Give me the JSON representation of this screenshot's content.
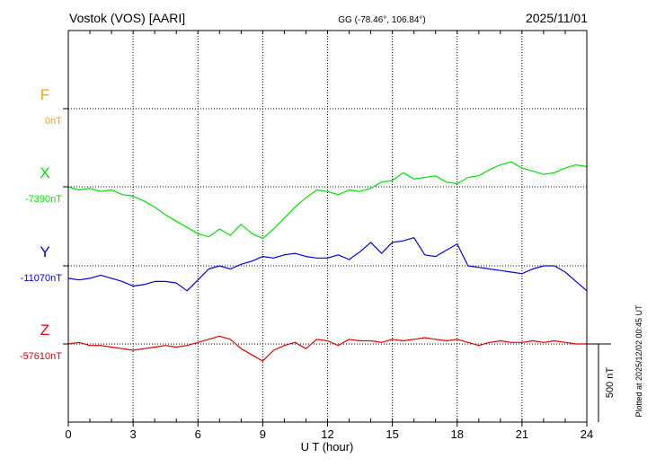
{
  "header": {
    "station": "Vostok (VOS)  [AARI]",
    "coords": "GG (-78.46°, 106.84°)",
    "date": "2025/11/01"
  },
  "footer": {
    "plotted": "Plotted at 2025/12/02 00:45 UT"
  },
  "scale_bar": {
    "label": "500 nT",
    "value_nT": 500
  },
  "colors": {
    "F": "#f0a800",
    "X": "#00e000",
    "Y": "#0000e0",
    "Z": "#e00000",
    "axis": "#000000",
    "grid": "#000000"
  },
  "chart_data": {
    "type": "line",
    "xlabel": "U T (hour)",
    "ylabel": "",
    "xlim": [
      0,
      24
    ],
    "x_ticks": [
      "0",
      "3",
      "6",
      "9",
      "12",
      "15",
      "18",
      "21",
      "24"
    ],
    "grid": true,
    "units": "nT",
    "channels": [
      {
        "name": "F",
        "baseline_label": "0nT",
        "baseline": 0,
        "values": []
      },
      {
        "name": "X",
        "baseline_label": "-7390nT",
        "baseline": -7390,
        "x": [
          0,
          0.5,
          1,
          1.5,
          2,
          2.5,
          3,
          3.5,
          4,
          4.5,
          5,
          5.5,
          6,
          6.5,
          7,
          7.5,
          8,
          8.5,
          9,
          9.5,
          10,
          10.5,
          11,
          11.5,
          12,
          12.5,
          13,
          13.5,
          14,
          14.5,
          15,
          15.5,
          16,
          16.5,
          17,
          17.5,
          18,
          18.5,
          19,
          19.5,
          20,
          20.5,
          21,
          21.5,
          22,
          22.5,
          23,
          23.5,
          24
        ],
        "values": [
          -7390,
          -7410,
          -7400,
          -7420,
          -7410,
          -7440,
          -7450,
          -7480,
          -7520,
          -7570,
          -7610,
          -7650,
          -7690,
          -7710,
          -7660,
          -7700,
          -7630,
          -7690,
          -7720,
          -7660,
          -7590,
          -7520,
          -7460,
          -7410,
          -7420,
          -7440,
          -7410,
          -7420,
          -7400,
          -7360,
          -7350,
          -7300,
          -7340,
          -7330,
          -7320,
          -7360,
          -7370,
          -7330,
          -7320,
          -7280,
          -7250,
          -7230,
          -7270,
          -7290,
          -7310,
          -7300,
          -7270,
          -7250,
          -7260
        ]
      },
      {
        "name": "Y",
        "baseline_label": "-11070nT",
        "baseline": -11070,
        "x": [
          0,
          0.5,
          1,
          1.5,
          2,
          2.5,
          3,
          3.5,
          4,
          4.5,
          5,
          5.5,
          6,
          6.5,
          7,
          7.5,
          8,
          8.5,
          9,
          9.5,
          10,
          10.5,
          11,
          11.5,
          12,
          12.5,
          13,
          13.5,
          14,
          14.5,
          15,
          15.5,
          16,
          16.5,
          17,
          17.5,
          18,
          18.5,
          19,
          19.5,
          20,
          20.5,
          21,
          21.5,
          22,
          22.5,
          23,
          23.5,
          24
        ],
        "values": [
          -11150,
          -11160,
          -11150,
          -11130,
          -11150,
          -11170,
          -11200,
          -11190,
          -11170,
          -11170,
          -11180,
          -11230,
          -11160,
          -11090,
          -11070,
          -11090,
          -11060,
          -11040,
          -11010,
          -11020,
          -11000,
          -10990,
          -11010,
          -11020,
          -11020,
          -11000,
          -11030,
          -10980,
          -10920,
          -10990,
          -10920,
          -10910,
          -10890,
          -11000,
          -11010,
          -10970,
          -10930,
          -11070,
          -11080,
          -11090,
          -11100,
          -11110,
          -11120,
          -11090,
          -11070,
          -11070,
          -11110,
          -11170,
          -11230
        ]
      },
      {
        "name": "Z",
        "baseline_label": "-57610nT",
        "baseline": -57610,
        "x": [
          0,
          0.5,
          1,
          1.5,
          2,
          2.5,
          3,
          3.5,
          4,
          4.5,
          5,
          5.5,
          6,
          6.5,
          7,
          7.5,
          8,
          8.5,
          9,
          9.5,
          10,
          10.5,
          11,
          11.5,
          12,
          12.5,
          13,
          13.5,
          14,
          14.5,
          15,
          15.5,
          16,
          16.5,
          17,
          17.5,
          18,
          18.5,
          19,
          19.5,
          20,
          20.5,
          21,
          21.5,
          22,
          22.5,
          23,
          23.5,
          24
        ],
        "values": [
          -57610,
          -57600,
          -57620,
          -57620,
          -57630,
          -57640,
          -57650,
          -57640,
          -57630,
          -57620,
          -57630,
          -57620,
          -57600,
          -57580,
          -57560,
          -57580,
          -57640,
          -57680,
          -57720,
          -57650,
          -57620,
          -57600,
          -57640,
          -57580,
          -57590,
          -57620,
          -57580,
          -57590,
          -57590,
          -57600,
          -57580,
          -57590,
          -57580,
          -57570,
          -57580,
          -57590,
          -57580,
          -57600,
          -57620,
          -57600,
          -57590,
          -57600,
          -57600,
          -57590,
          -57600,
          -57590,
          -57600,
          -57610,
          -57610
        ]
      }
    ]
  }
}
